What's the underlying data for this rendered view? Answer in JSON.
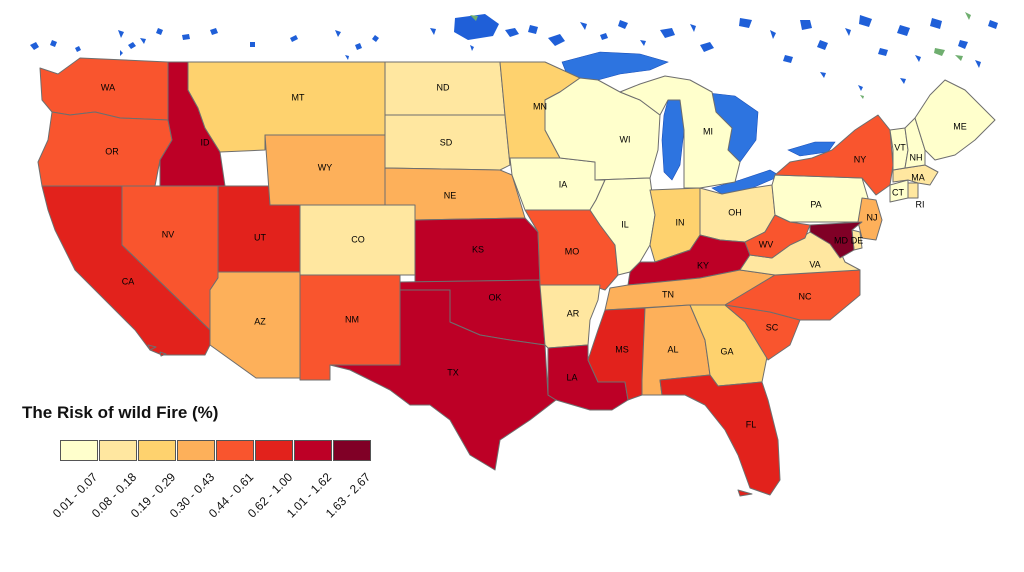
{
  "legend": {
    "title": "The Risk of wild Fire (%)",
    "classes": [
      {
        "label": "0.01 - 0.07",
        "color": "#ffffcc"
      },
      {
        "label": "0.08 - 0.18",
        "color": "#ffe7a0"
      },
      {
        "label": "0.19 - 0.29",
        "color": "#fed26e"
      },
      {
        "label": "0.30 - 0.43",
        "color": "#fdb05a"
      },
      {
        "label": "0.44 - 0.61",
        "color": "#f9552e"
      },
      {
        "label": "0.62 - 1.00",
        "color": "#e2221c"
      },
      {
        "label": "1.01 - 1.62",
        "color": "#bd0026"
      },
      {
        "label": "1.63 - 2.67",
        "color": "#800026"
      }
    ]
  },
  "states": [
    {
      "abbr": "WA",
      "class": 4
    },
    {
      "abbr": "OR",
      "class": 4
    },
    {
      "abbr": "CA",
      "class": 5
    },
    {
      "abbr": "ID",
      "class": 6
    },
    {
      "abbr": "NV",
      "class": 4
    },
    {
      "abbr": "UT",
      "class": 5
    },
    {
      "abbr": "AZ",
      "class": 3
    },
    {
      "abbr": "MT",
      "class": 2
    },
    {
      "abbr": "WY",
      "class": 3
    },
    {
      "abbr": "CO",
      "class": 1
    },
    {
      "abbr": "NM",
      "class": 4
    },
    {
      "abbr": "ND",
      "class": 1
    },
    {
      "abbr": "SD",
      "class": 1
    },
    {
      "abbr": "NE",
      "class": 3
    },
    {
      "abbr": "KS",
      "class": 6
    },
    {
      "abbr": "OK",
      "class": 6
    },
    {
      "abbr": "TX",
      "class": 6
    },
    {
      "abbr": "MN",
      "class": 2
    },
    {
      "abbr": "IA",
      "class": 0
    },
    {
      "abbr": "MO",
      "class": 4
    },
    {
      "abbr": "AR",
      "class": 1
    },
    {
      "abbr": "LA",
      "class": 6
    },
    {
      "abbr": "WI",
      "class": 0
    },
    {
      "abbr": "IL",
      "class": 0
    },
    {
      "abbr": "MI",
      "class": 0
    },
    {
      "abbr": "IN",
      "class": 2
    },
    {
      "abbr": "OH",
      "class": 1
    },
    {
      "abbr": "KY",
      "class": 6
    },
    {
      "abbr": "TN",
      "class": 3
    },
    {
      "abbr": "MS",
      "class": 5
    },
    {
      "abbr": "AL",
      "class": 3
    },
    {
      "abbr": "GA",
      "class": 2
    },
    {
      "abbr": "FL",
      "class": 5
    },
    {
      "abbr": "SC",
      "class": 4
    },
    {
      "abbr": "NC",
      "class": 4
    },
    {
      "abbr": "VA",
      "class": 1
    },
    {
      "abbr": "WV",
      "class": 4
    },
    {
      "abbr": "PA",
      "class": 0
    },
    {
      "abbr": "NY",
      "class": 4
    },
    {
      "abbr": "NJ",
      "class": 3
    },
    {
      "abbr": "DE",
      "class": 1
    },
    {
      "abbr": "MD",
      "class": 7
    },
    {
      "abbr": "CT",
      "class": 0
    },
    {
      "abbr": "RI",
      "class": 1
    },
    {
      "abbr": "MA",
      "class": 1
    },
    {
      "abbr": "VT",
      "class": 0
    },
    {
      "abbr": "NH",
      "class": 0
    },
    {
      "abbr": "ME",
      "class": 0
    }
  ]
}
